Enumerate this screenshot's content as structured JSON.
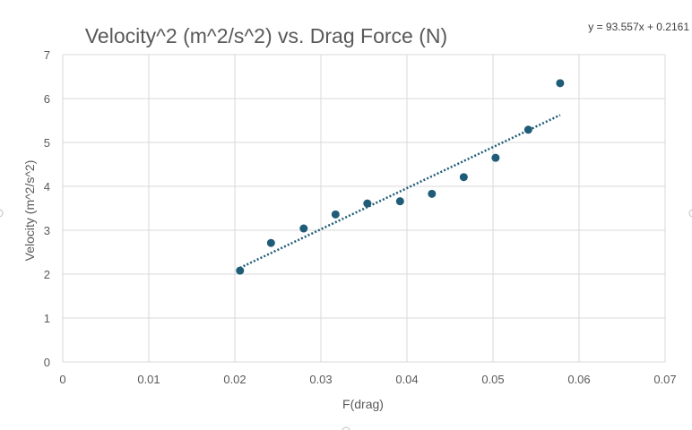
{
  "chart_data": {
    "type": "scatter",
    "title": "Velocity^2 (m^2/s^2) vs. Drag Force (N)",
    "xlabel": "F(drag)",
    "ylabel": "Velocity (m^2/s^2)",
    "xlim": [
      0,
      0.07
    ],
    "ylim": [
      0,
      7
    ],
    "x_ticks": [
      "0",
      "0.01",
      "0.02",
      "0.03",
      "0.04",
      "0.05",
      "0.06",
      "0.07"
    ],
    "y_ticks": [
      "0",
      "1",
      "2",
      "3",
      "4",
      "5",
      "6",
      "7"
    ],
    "grid": true,
    "series": [
      {
        "x": [
          0.0206,
          0.0242,
          0.028,
          0.0317,
          0.0354,
          0.0392,
          0.0429,
          0.0466,
          0.0503,
          0.0541,
          0.0578
        ],
        "y": [
          2.08,
          2.71,
          3.04,
          3.36,
          3.61,
          3.66,
          3.83,
          4.21,
          4.65,
          5.29,
          6.35
        ],
        "color": "#1f5c78"
      }
    ],
    "trendline": {
      "type": "linear",
      "slope": 93.557,
      "intercept": 0.2161,
      "x_range": [
        0.0206,
        0.0578
      ],
      "equation_label": "y = 93.557x + 0.2161",
      "color": "#1f5c78"
    }
  }
}
